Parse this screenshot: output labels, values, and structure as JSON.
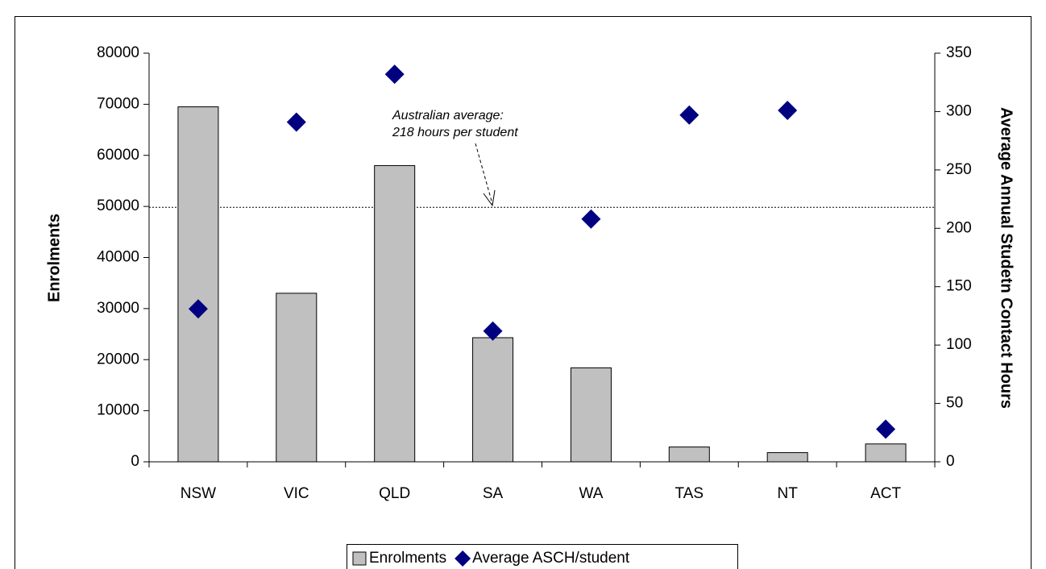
{
  "chart_data": {
    "type": "bar",
    "categories": [
      "NSW",
      "VIC",
      "QLD",
      "SA",
      "WA",
      "TAS",
      "NT",
      "ACT"
    ],
    "series": [
      {
        "name": "Enrolments",
        "type": "bar",
        "color": "#c0c0c0",
        "values": [
          69500,
          33000,
          58000,
          24300,
          18400,
          2900,
          1800,
          3500
        ]
      },
      {
        "name": "Average ASCH/student",
        "type": "scatter",
        "marker": "diamond",
        "axis": "y2",
        "color": "#000080",
        "values": [
          131,
          291,
          332,
          112,
          208,
          297,
          301,
          28
        ]
      }
    ],
    "ylabel": "Enrolments",
    "y2label": "Average Annual Studetn Contact Hours",
    "ylim": [
      0,
      80000
    ],
    "yticks": [
      0,
      10000,
      20000,
      30000,
      40000,
      50000,
      60000,
      70000,
      80000
    ],
    "y2lim": [
      0,
      350
    ],
    "y2ticks": [
      0,
      50,
      100,
      150,
      200,
      250,
      300,
      350
    ],
    "reference_line": {
      "value": 218,
      "axis": "y2"
    },
    "annotation": [
      "Australian average:",
      "218 hours per student"
    ],
    "legend": "bottom"
  }
}
